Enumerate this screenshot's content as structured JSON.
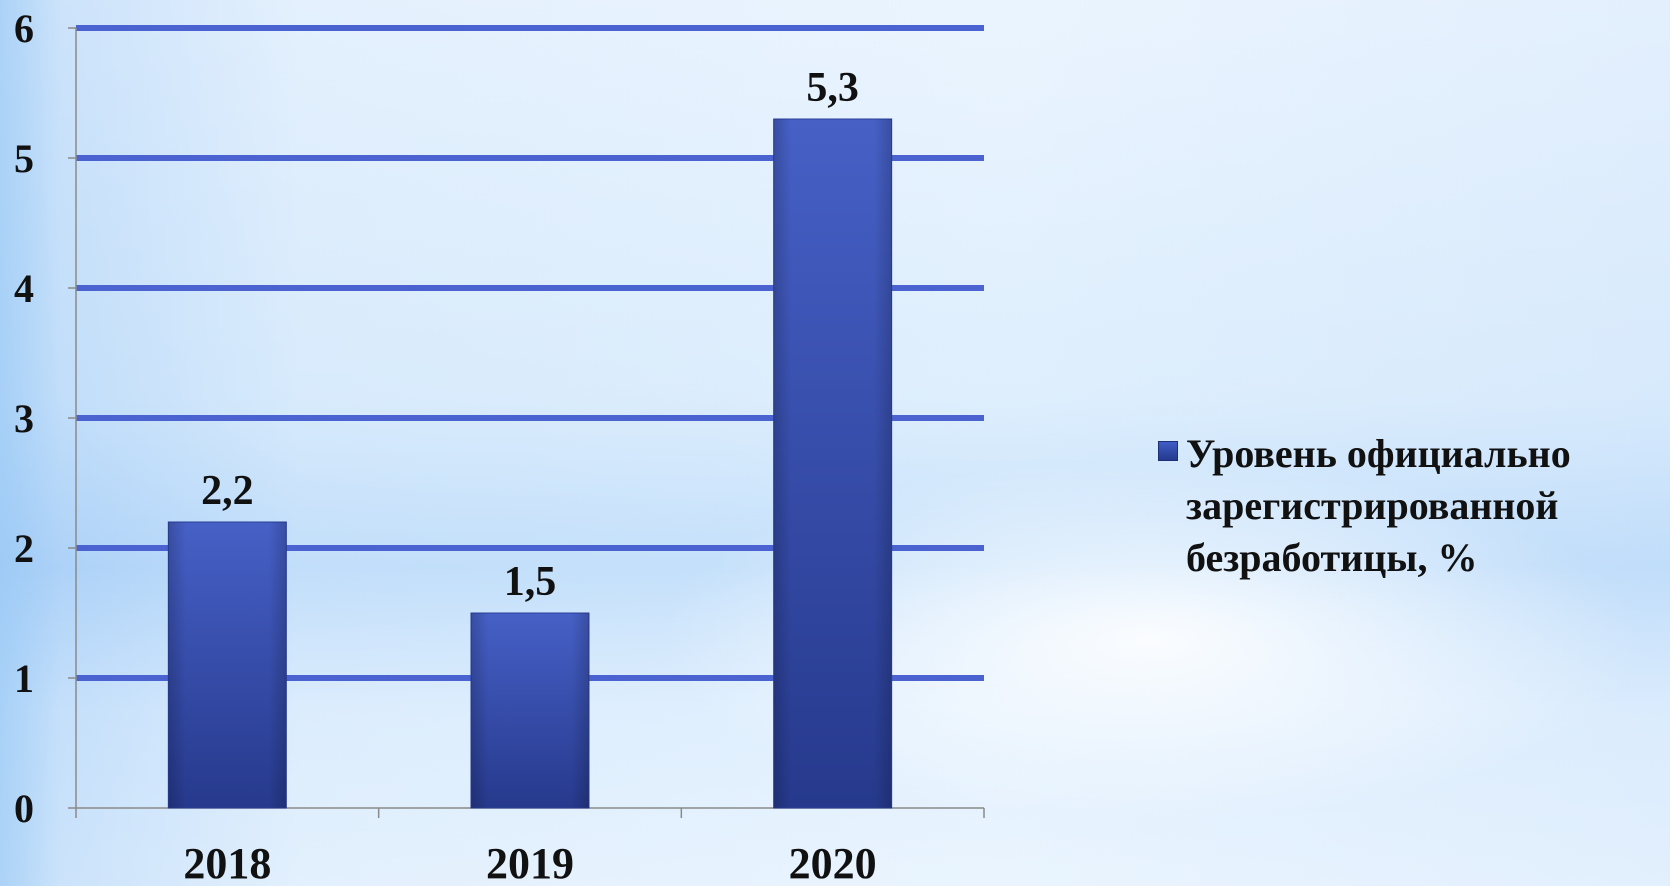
{
  "chart_data": {
    "type": "bar",
    "categories": [
      "2018",
      "2019",
      "2020"
    ],
    "series": [
      {
        "name": "Уровень официально зарегистрированной безработицы, %",
        "values": [
          2.2,
          1.5,
          5.3
        ],
        "data_labels": [
          "2,2",
          "1,5",
          "5,3"
        ],
        "color": "#3550b4"
      }
    ],
    "y_ticks": [
      "0",
      "1",
      "2",
      "3",
      "4",
      "5",
      "6"
    ],
    "ylim": [
      0,
      6
    ],
    "grid": true,
    "grid_color": "#4a63d1",
    "legend_position": "right"
  }
}
